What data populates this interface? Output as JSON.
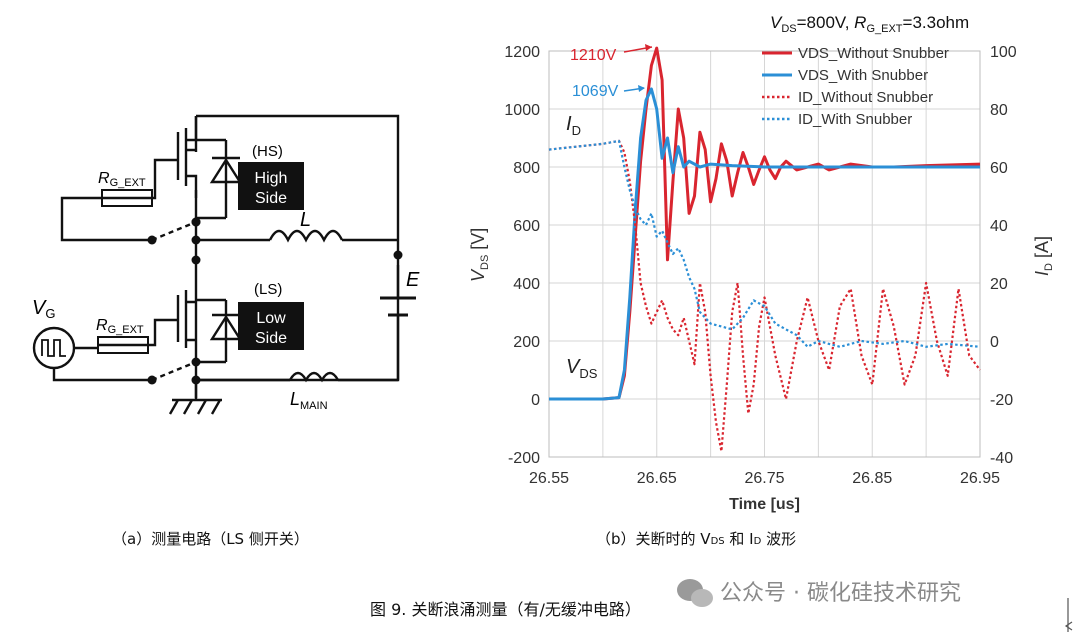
{
  "circuit": {
    "hs_label": "(HS)",
    "hs_box": [
      "High",
      "Side"
    ],
    "ls_label": "(LS)",
    "ls_box": [
      "Low",
      "Side"
    ],
    "rg_hs": {
      "main": "R",
      "sub": "G_EXT"
    },
    "rg_ls": {
      "main": "R",
      "sub": "G_EXT"
    },
    "vg": {
      "main": "V",
      "sub": "G"
    },
    "inductor_l": "L",
    "source_e": "E",
    "lmain": {
      "main": "L",
      "sub": "MAIN"
    }
  },
  "captions": {
    "a": "（a）测量电路（LS 侧开关）",
    "b_pre": "（b）关断时的 V",
    "b_sub1": "DS",
    "b_mid": " 和 I",
    "b_sub2": "D",
    "b_post": " 波形",
    "figure": "图 9. 关断浪涌测量（有/无缓冲电路）",
    "watermark": "公众号 · 碳化硅技术研究"
  },
  "chart_data": {
    "type": "line",
    "title_parts": {
      "v": "V",
      "v_sub": "DS",
      "v_rest": "=800V, ",
      "r": "R",
      "r_sub": "G_EXT",
      "r_rest": "=3.3ohm"
    },
    "xlabel": "Time [us]",
    "ylabel_left": {
      "main": "V",
      "sub": "DS",
      "unit": "[V]"
    },
    "ylabel_right": {
      "main": "I",
      "sub": "D",
      "unit": "[A]"
    },
    "xlim": [
      26.55,
      26.95
    ],
    "ylim_left": [
      -200,
      1200
    ],
    "ylim_right": [
      -40,
      100
    ],
    "x_ticks": [
      "26.55",
      "26.65",
      "26.75",
      "26.85",
      "26.95"
    ],
    "y_ticks_left": [
      "-200",
      "0",
      "200",
      "400",
      "600",
      "800",
      "1000",
      "1200"
    ],
    "y_ticks_right": [
      "-40",
      "-20",
      "0",
      "20",
      "40",
      "60",
      "80",
      "100"
    ],
    "grid": true,
    "legend_position": "top-right",
    "annotations": {
      "peak_without": "1210V",
      "peak_with": "1069V",
      "id_label": {
        "main": "I",
        "sub": "D"
      },
      "vds_label": {
        "main": "V",
        "sub": "DS"
      }
    },
    "series": [
      {
        "name": "VDS_Without Snubber",
        "axis": "left",
        "color": "#d9252f",
        "style": "solid",
        "x": [
          26.55,
          26.6,
          26.615,
          26.62,
          26.625,
          26.63,
          26.635,
          26.64,
          26.645,
          26.65,
          26.655,
          26.66,
          26.665,
          26.67,
          26.675,
          26.68,
          26.685,
          26.69,
          26.695,
          26.7,
          26.705,
          26.71,
          26.715,
          26.72,
          26.725,
          26.73,
          26.735,
          26.74,
          26.745,
          26.75,
          26.755,
          26.76,
          26.765,
          26.77,
          26.78,
          26.79,
          26.8,
          26.81,
          26.82,
          26.83,
          26.85,
          26.87,
          26.9,
          26.95
        ],
        "y": [
          0,
          0,
          5,
          80,
          300,
          560,
          820,
          1000,
          1150,
          1210,
          1100,
          480,
          750,
          1000,
          900,
          640,
          700,
          920,
          860,
          680,
          760,
          880,
          820,
          700,
          780,
          850,
          800,
          740,
          790,
          835,
          790,
          760,
          800,
          820,
          790,
          800,
          810,
          790,
          800,
          810,
          800,
          800,
          805,
          810
        ]
      },
      {
        "name": "VDS_With Snubber",
        "axis": "left",
        "color": "#2b8fd6",
        "style": "solid",
        "x": [
          26.55,
          26.6,
          26.615,
          26.62,
          26.625,
          26.63,
          26.635,
          26.64,
          26.645,
          26.65,
          26.655,
          26.66,
          26.665,
          26.67,
          26.675,
          26.68,
          26.69,
          26.7,
          26.72,
          26.75,
          26.8,
          26.85,
          26.9,
          26.95
        ],
        "y": [
          0,
          0,
          5,
          100,
          350,
          650,
          900,
          1030,
          1069,
          1000,
          830,
          900,
          780,
          870,
          800,
          820,
          800,
          810,
          805,
          800,
          800,
          800,
          800,
          800
        ],
        "_note": null
      },
      {
        "name": "ID_Without Snubber",
        "axis": "right",
        "color": "#d9252f",
        "style": "dotted",
        "x": [
          26.55,
          26.6,
          26.615,
          26.62,
          26.625,
          26.63,
          26.635,
          26.64,
          26.645,
          26.65,
          26.655,
          26.66,
          26.665,
          26.67,
          26.675,
          26.68,
          26.685,
          26.69,
          26.695,
          26.7,
          26.705,
          26.71,
          26.715,
          26.72,
          26.725,
          26.73,
          26.735,
          26.74,
          26.745,
          26.75,
          26.76,
          26.77,
          26.78,
          26.79,
          26.8,
          26.81,
          26.82,
          26.83,
          26.84,
          26.85,
          26.86,
          26.87,
          26.88,
          26.89,
          26.9,
          26.91,
          26.92,
          26.93,
          26.94,
          26.95
        ],
        "y": [
          66,
          68,
          69,
          65,
          55,
          40,
          20,
          12,
          6,
          10,
          14,
          8,
          4,
          2,
          8,
          0,
          -8,
          20,
          10,
          -12,
          -28,
          -38,
          -15,
          10,
          20,
          -5,
          -25,
          -15,
          5,
          15,
          -5,
          -20,
          0,
          15,
          0,
          -10,
          12,
          18,
          -5,
          -15,
          18,
          5,
          -15,
          -5,
          20,
          0,
          -12,
          18,
          -5,
          -10
        ]
      },
      {
        "name": "ID_With Snubber",
        "axis": "right",
        "color": "#2b8fd6",
        "style": "dotted",
        "x": [
          26.55,
          26.6,
          26.615,
          26.62,
          26.625,
          26.63,
          26.635,
          26.64,
          26.645,
          26.65,
          26.655,
          26.66,
          26.665,
          26.67,
          26.675,
          26.68,
          26.685,
          26.69,
          26.7,
          26.71,
          26.72,
          26.73,
          26.74,
          26.75,
          26.76,
          26.77,
          26.78,
          26.79,
          26.8,
          26.82,
          26.84,
          26.86,
          26.88,
          26.9,
          26.92,
          26.95
        ],
        "y": [
          66,
          68,
          69,
          60,
          52,
          46,
          42,
          40,
          44,
          36,
          38,
          34,
          30,
          32,
          28,
          22,
          18,
          10,
          6,
          5,
          4,
          8,
          14,
          12,
          6,
          4,
          2,
          -2,
          0,
          -2,
          0,
          -1,
          0,
          -2,
          -1,
          -2
        ]
      }
    ]
  }
}
